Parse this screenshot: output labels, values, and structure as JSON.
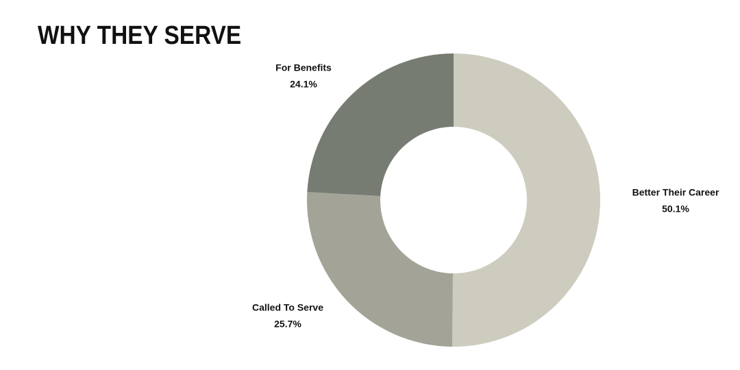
{
  "chart_data": {
    "type": "donut",
    "title": "WHY THEY SERVE",
    "categories": [
      "Better Their Career",
      "Called To Serve",
      "For Benefits"
    ],
    "values": [
      50.1,
      25.7,
      24.1
    ],
    "value_labels": [
      "50.1%",
      "25.7%",
      "24.1%"
    ],
    "colors": [
      "#cdccbf",
      "#a3a497",
      "#777c72"
    ]
  }
}
